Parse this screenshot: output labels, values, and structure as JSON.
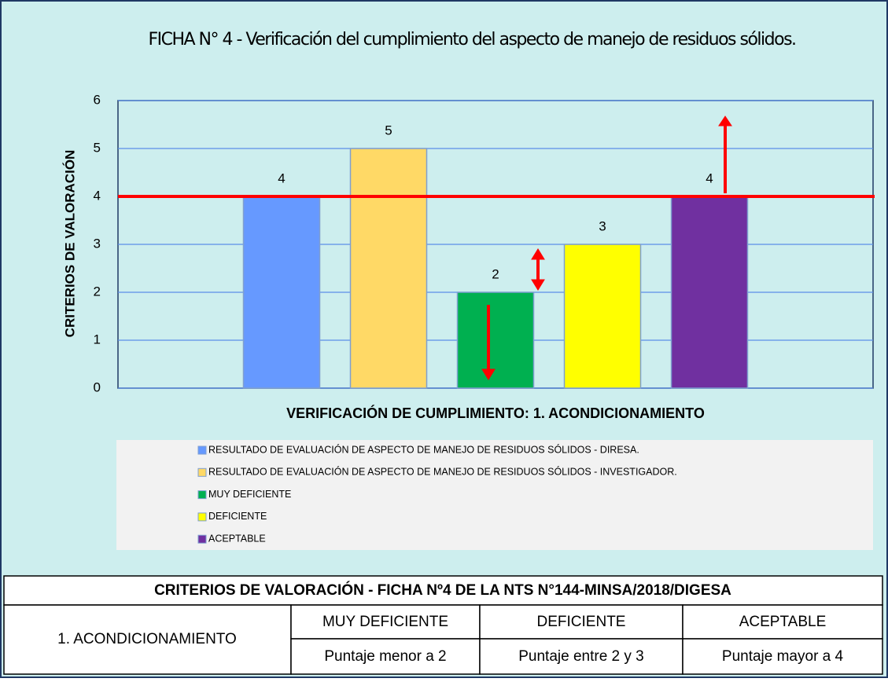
{
  "chart_data": {
    "type": "bar",
    "title": "FICHA N° 4 - Verificación del cumplimiento del aspecto de manejo de residuos sólidos.",
    "x_label": "VERIFICACIÓN DE CUMPLIMIENTO: 1. ACONDICIONAMIENTO",
    "y_label": "CRITERIOS DE VALORACIÓN",
    "series": [
      {
        "name": "RESULTADO DE EVALUACIÓN DE ASPECTO DE MANEJO DE RESIDUOS SÓLIDOS - DIRESA.",
        "color": "#6699ff",
        "values": [
          4
        ]
      },
      {
        "name": "RESULTADO DE EVALUACIÓN DE ASPECTO DE MANEJO DE RESIDUOS SÓLIDOS - INVESTIGADOR.",
        "color": "#ffd966",
        "values": [
          5
        ]
      },
      {
        "name": "MUY DEFICIENTE",
        "color": "#00b050",
        "values": [
          2
        ]
      },
      {
        "name": "DEFICIENTE",
        "color": "#ffff00",
        "values": [
          3
        ]
      },
      {
        "name": "ACEPTABLE",
        "color": "#7030a0",
        "values": [
          4
        ]
      }
    ],
    "threshold": 4,
    "ylim": [
      0,
      6
    ],
    "yticks": [
      0,
      1,
      2,
      3,
      4,
      5,
      6
    ],
    "grid": true,
    "legend": "bottom"
  },
  "table": {
    "title": "CRITERIOS DE VALORACIÓN - FICHA Nº4 DE LA NTS N°144-MINSA/2018/DIGESA",
    "rows": [
      [
        "1. ACONDICIONAMIENTO",
        "MUY DEFICIENTE",
        "DEFICIENTE",
        "ACEPTABLE"
      ],
      [
        "Puntaje menor a 2",
        "Puntaje entre 2 y 3",
        "Puntaje mayor a 4"
      ]
    ]
  }
}
